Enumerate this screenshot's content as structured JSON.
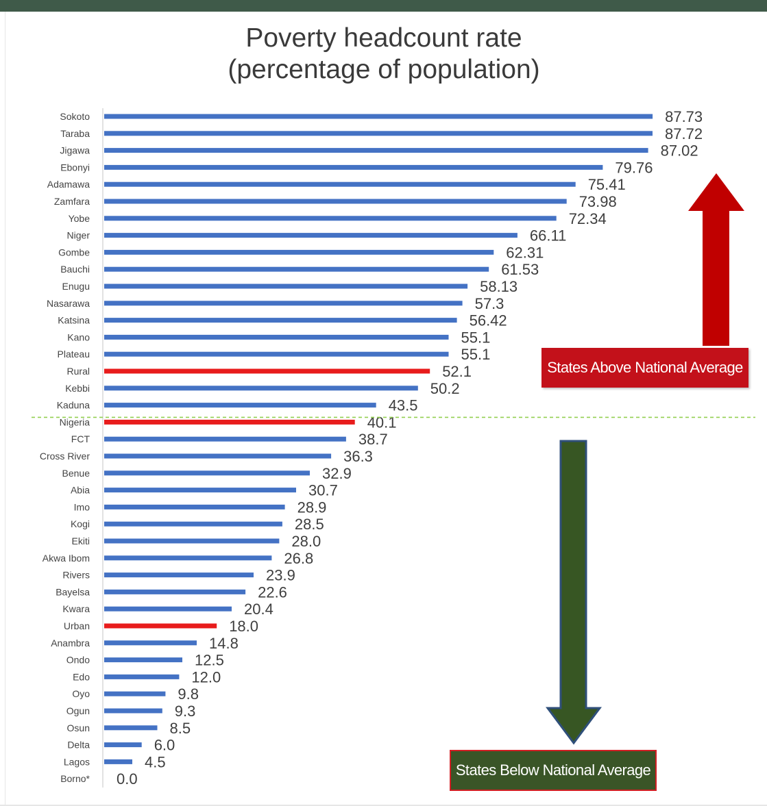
{
  "chart_data": {
    "type": "bar",
    "orientation": "horizontal",
    "title": [
      "Poverty headcount rate",
      "(percentage of population)"
    ],
    "categories": [
      "Sokoto",
      "Taraba",
      "Jigawa",
      "Ebonyi",
      "Adamawa",
      "Zamfara",
      "Yobe",
      "Niger",
      "Gombe",
      "Bauchi",
      "Enugu",
      "Nasarawa",
      "Katsina",
      "Kano",
      "Plateau",
      "Rural",
      "Kebbi",
      "Kaduna",
      "Nigeria",
      "FCT",
      "Cross River",
      "Benue",
      "Abia",
      "Imo",
      "Kogi",
      "Ekiti",
      "Akwa Ibom",
      "Rivers",
      "Bayelsa",
      "Kwara",
      "Urban",
      "Anambra",
      "Ondo",
      "Edo",
      "Oyo",
      "Ogun",
      "Osun",
      "Delta",
      "Lagos",
      "Borno*"
    ],
    "values": [
      87.73,
      87.72,
      87.02,
      79.76,
      75.41,
      73.98,
      72.34,
      66.11,
      62.31,
      61.53,
      58.13,
      57.3,
      56.42,
      55.1,
      55.1,
      52.1,
      50.2,
      43.5,
      40.1,
      38.7,
      36.3,
      32.9,
      30.7,
      28.9,
      28.5,
      28.0,
      26.8,
      23.9,
      22.6,
      20.4,
      18.0,
      14.8,
      12.5,
      12.0,
      9.8,
      9.3,
      8.5,
      6.0,
      4.5,
      0.0
    ],
    "value_labels": [
      "87.73",
      "87.72",
      "87.02",
      "79.76",
      "75.41",
      "73.98",
      "72.34",
      "66.11",
      "62.31",
      "61.53",
      "58.13",
      "57.3",
      "56.42",
      "55.1",
      "55.1",
      "52.1",
      "50.2",
      "43.5",
      "40.1",
      "38.7",
      "36.3",
      "32.9",
      "30.7",
      "28.9",
      "28.5",
      "28.0",
      "26.8",
      "23.9",
      "22.6",
      "20.4",
      "18.0",
      "14.8",
      "12.5",
      "12.0",
      "9.8",
      "9.3",
      "8.5",
      "6.0",
      "4.5",
      "0.0"
    ],
    "highlighted": [
      "Rural",
      "Nigeria",
      "Urban"
    ],
    "reference_line": {
      "at": "Nigeria",
      "value": 40.1,
      "style": "dashed"
    },
    "xlim": [
      0,
      100
    ],
    "grid": false,
    "legend": "none",
    "xlabel": "",
    "ylabel": ""
  },
  "colors": {
    "bar": "#4472c4",
    "highlight_bar": "#e81c1c",
    "axis": "#d9d9d9",
    "reference_line": "#92d050",
    "above_arrow": "#c00000",
    "above_box": "#c3111a",
    "below_arrow": "#375623",
    "below_arrow_outline": "#2f4f7a",
    "below_box": "#3a5527",
    "header_strip": "#3f5a49"
  },
  "annotations": {
    "above": "States Above National Average",
    "below": "States Below National Average",
    "above_arrow_icon": "arrow-up-icon",
    "below_arrow_icon": "arrow-down-icon"
  }
}
